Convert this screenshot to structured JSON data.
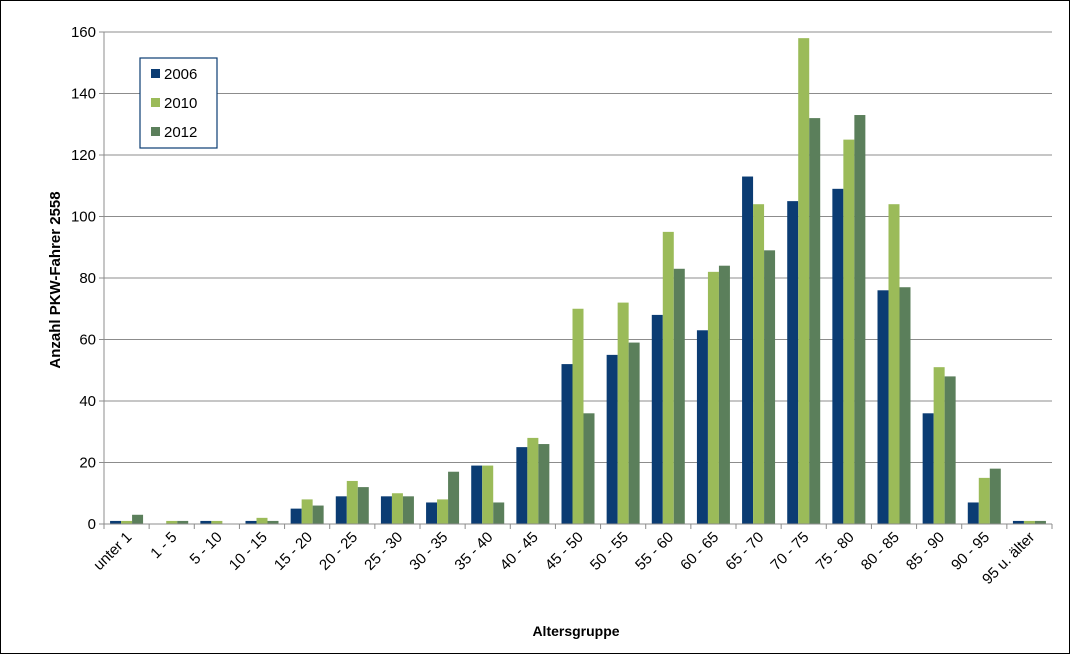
{
  "chart_data": {
    "type": "bar",
    "title": "",
    "xlabel": "Altersgruppe",
    "ylabel": "Anzahl PKW-Fahrer 2558",
    "ylim": [
      0,
      160
    ],
    "yticks": [
      0,
      20,
      40,
      60,
      80,
      100,
      120,
      140,
      160
    ],
    "grid": true,
    "legend_position": "top-left",
    "categories": [
      "unter 1",
      "1 - 5",
      "5 - 10",
      "10 - 15",
      "15 - 20",
      "20 - 25",
      "25 - 30",
      "30 - 35",
      "35 - 40",
      "40 - 45",
      "45 - 50",
      "50 - 55",
      "55 - 60",
      "60 - 65",
      "65 - 70",
      "70 - 75",
      "75 - 80",
      "80 - 85",
      "85 - 90",
      "90 - 95",
      "95 u. älter"
    ],
    "series": [
      {
        "name": "2006",
        "color": "#0b3c73",
        "values": [
          1,
          0,
          1,
          1,
          5,
          9,
          9,
          7,
          19,
          25,
          52,
          55,
          68,
          63,
          113,
          105,
          109,
          76,
          36,
          7,
          1
        ]
      },
      {
        "name": "2010",
        "color": "#9bbb59",
        "values": [
          1,
          1,
          1,
          2,
          8,
          14,
          10,
          8,
          19,
          28,
          70,
          72,
          95,
          82,
          104,
          158,
          125,
          104,
          51,
          15,
          1
        ]
      },
      {
        "name": "2012",
        "color": "#5b7f5b",
        "values": [
          3,
          1,
          0,
          1,
          6,
          12,
          9,
          17,
          7,
          26,
          36,
          59,
          83,
          84,
          89,
          132,
          133,
          77,
          48,
          18,
          1
        ]
      }
    ]
  }
}
